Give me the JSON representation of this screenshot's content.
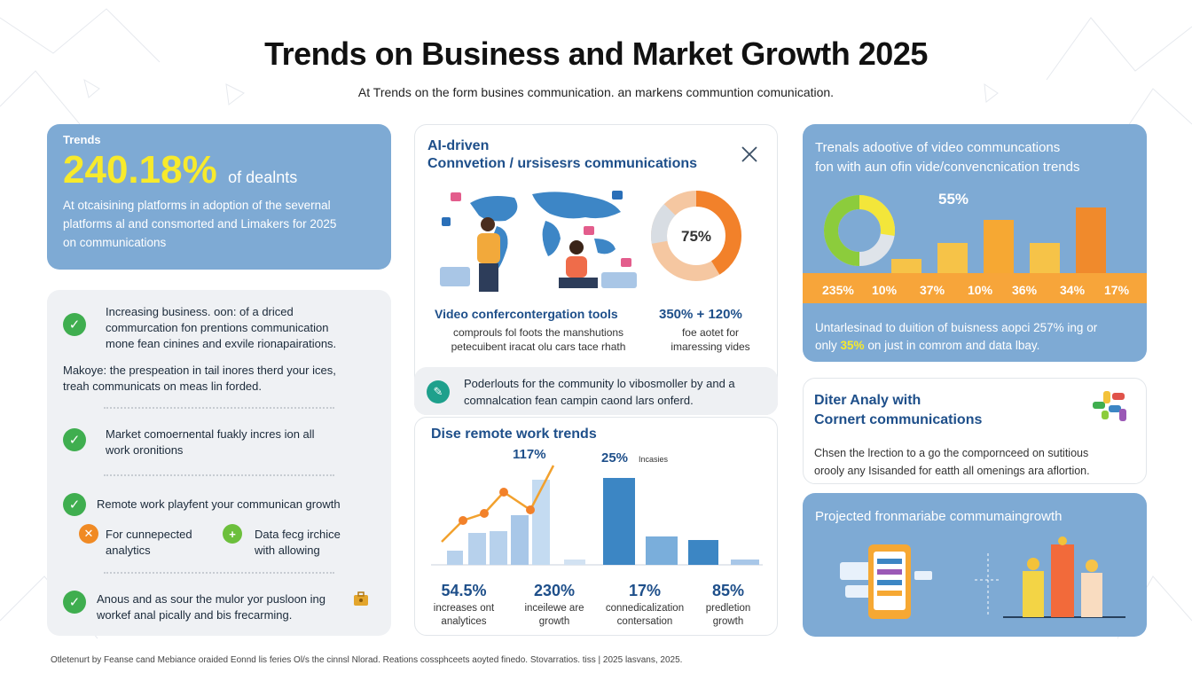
{
  "header": {
    "title": "Trends on Business and Market Growth 2025",
    "subtitle": "At Trends on the form busines communication. an markens communtion comunication."
  },
  "trends_card": {
    "label": "Trends",
    "big_value": "240.18%",
    "big_suffix": "of dealnts",
    "desc_1": "At otcaisining platforms in adoption of the severnal",
    "desc_2": "platforms al and consmorted and Limakers for 2025",
    "desc_3": "on communications"
  },
  "checklist": {
    "item_1_line_1": "Increasing business. oon: of a driced",
    "item_1_line_2": "commurcation fon prentions communication",
    "item_1_line_3": "mone fean cinines and exvile rionapairations.",
    "note_line_1": "Makoye: the prespeation in tail inores therd your ices,",
    "note_line_2": "treah communicats on meas lin forded.",
    "item_2_line_1": "Market comoernental fuakly incres ion all",
    "item_2_line_2": "work oronitions",
    "item_3": "Remote work playfent your communican growth",
    "sub_a_line_1": "For cunnepected",
    "sub_a_line_2": "analytics",
    "sub_b_line_1": "Data fecg irchice",
    "sub_b_line_2": "with allowing",
    "item_4_line_1": "Anous and as sour the mulor yor pusloon ing",
    "item_4_line_2": "workef anal pically and bis frecarming."
  },
  "ai_card": {
    "title_1": "AI-driven",
    "title_2": "Connvetion / ursisesrs communications",
    "donut_value": "75%",
    "donut_fraction": 0.75,
    "video_title": "Video confercontergation tools",
    "video_desc_1": "comprouls fol foots the manshutions",
    "video_desc_2": "petecuibent iracat olu cars tace rhath",
    "stat_title": "350% + 120%",
    "stat_desc_1": "foe aotet for",
    "stat_desc_2": "imaressing vides"
  },
  "community": {
    "text_1": "Poderlouts for the community lo vibosmoller by and a",
    "text_2": "comnalcation fean campin caond lars onferd."
  },
  "remote_card": {
    "title": "Dise remote work trends",
    "peak_label_1": "117%",
    "peak_label_2": "25%",
    "peak_label_2_suffix": "Incasies",
    "stats": [
      {
        "value": "54.5%",
        "label_1": "increases ont",
        "label_2": "analytices"
      },
      {
        "value": "230%",
        "label_1": "inceilewe are",
        "label_2": "growth"
      },
      {
        "value": "17%",
        "label_1": "connedicalization",
        "label_2": "contersation"
      },
      {
        "value": "85%",
        "label_1": "predletion",
        "label_2": "growth"
      }
    ]
  },
  "video_card": {
    "title_1": "Trenals adootive of video communcations",
    "title_2": "fon with aun ofin vide/convencnication trends",
    "chart_label": "55%",
    "bar_labels": [
      "235%",
      "10%",
      "37%",
      "10%",
      "36%",
      "34%",
      "17%"
    ],
    "foot_1": "Untarlesinad to duition of buisness aopci 257% ing or",
    "foot_2_a": "only",
    "foot_2_b": "35%",
    "foot_2_c": "on just in comrom and data lbay."
  },
  "diter_card": {
    "title_1": "Diter Analy with",
    "title_2": "Cornert communications",
    "desc_1": "Chsen the lrection to a go the compornceed on sutitious",
    "desc_2": "orooly any Isisanded for eatth all omenings ara aflortion."
  },
  "projected": {
    "title": "Projected fronmariabe commumaingrowth"
  },
  "footer": {
    "text": "Otletenurt by Feanse cand Mebiance oraided Eonnd lis feries Ol/s the cinnsl Nlorad. Reations cossphceets aoyted finedo. Stovarratios. tiss | 2025 lasvans, 2025."
  }
}
